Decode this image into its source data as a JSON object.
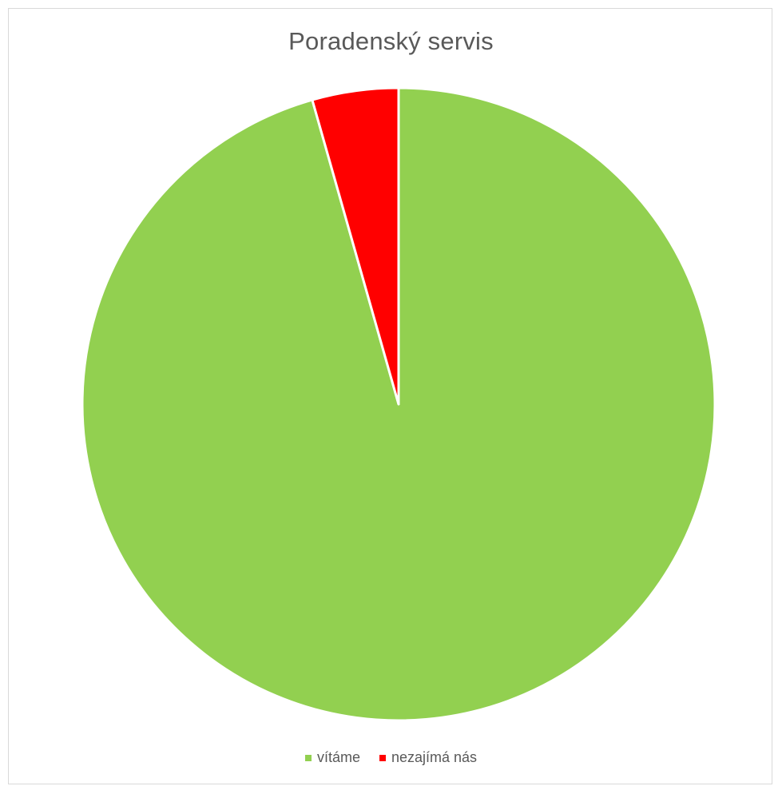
{
  "chart_data": {
    "type": "pie",
    "title": "Poradenský servis",
    "legend_position": "bottom",
    "start_angle_deg": 0,
    "direction": "clockwise",
    "categories": [
      "vítáme",
      "nezajímá nás"
    ],
    "values": [
      95.6,
      4.4
    ],
    "colors": [
      "#92d050",
      "#ff0000"
    ],
    "slice_border_color": "#ffffff"
  }
}
